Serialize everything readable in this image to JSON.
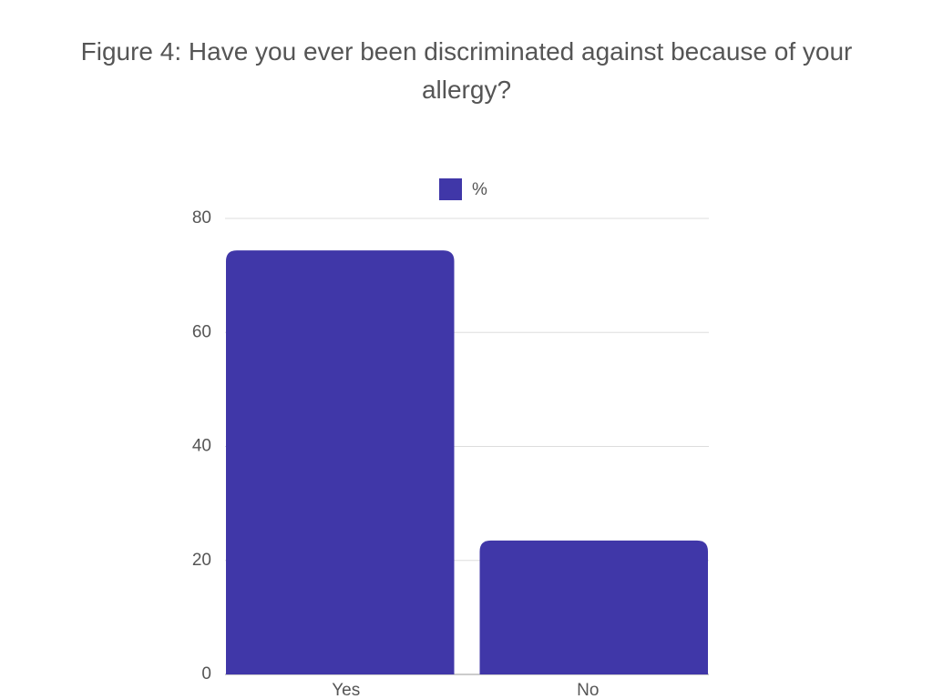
{
  "chart_data": {
    "type": "bar",
    "title": "Figure 4: Have you ever been discriminated against because of your allergy?",
    "categories": [
      "Yes",
      "No"
    ],
    "series": [
      {
        "name": "%",
        "color": "#4037a8",
        "values": [
          74.4,
          23.5
        ]
      }
    ],
    "ylim": [
      0,
      80
    ],
    "yticks": [
      0,
      20,
      40,
      60,
      80
    ],
    "grid": true,
    "legend": "top"
  }
}
